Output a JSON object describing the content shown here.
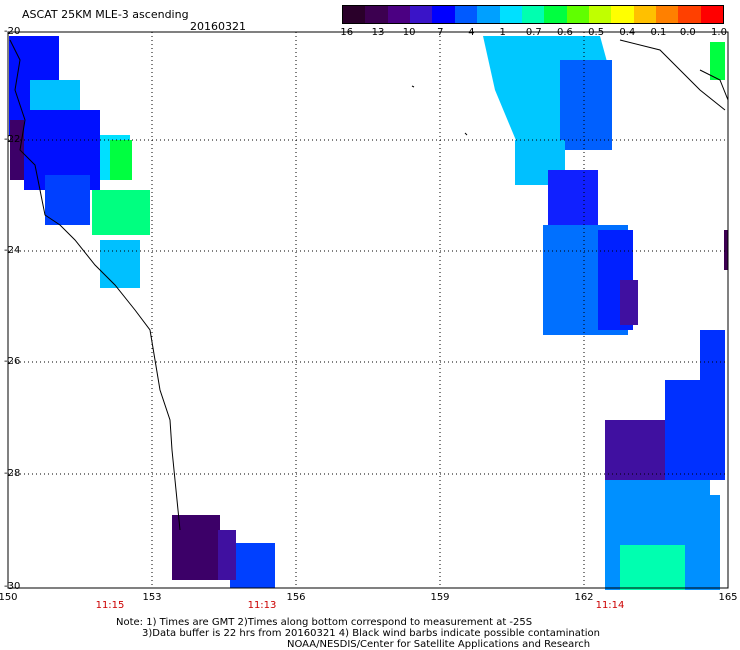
{
  "header": {
    "title": "ASCAT 25KM MLE-3 ascending",
    "date": "20160321"
  },
  "colorbar": {
    "labels": [
      "-16",
      "-13",
      "-10",
      "-7",
      "-4",
      "-1",
      "-0.7",
      "-0.6",
      "-0.5",
      "-0.4",
      "-0.1",
      "0.0",
      "1.0"
    ],
    "colors": [
      "#2a002a",
      "#3c0050",
      "#4b0082",
      "#3a14c8",
      "#0000ff",
      "#005aff",
      "#00a0ff",
      "#00e0ff",
      "#00ffb0",
      "#00ff40",
      "#60ff00",
      "#c0ff00",
      "#ffff00",
      "#ffc000",
      "#ff8000",
      "#ff4000",
      "#ff0000"
    ]
  },
  "axes": {
    "lat_labels": [
      "-20",
      "-22",
      "-24",
      "-26",
      "-28",
      "-30"
    ],
    "lon_labels": [
      "150",
      "153",
      "156",
      "159",
      "162",
      "165"
    ]
  },
  "pass_times": [
    {
      "text": "11:15"
    },
    {
      "text": "11:13"
    },
    {
      "text": "11:14"
    }
  ],
  "notes": {
    "line1": "Note: 1) Times are GMT 2)Times along bottom correspond to measurement at -25S",
    "line2": "3)Data buffer is 22 hrs from 20160321 4) Black wind barbs indicate possible contamination",
    "line3": "NOAA/NESDIS/Center for Satellite Applications and Research"
  }
}
